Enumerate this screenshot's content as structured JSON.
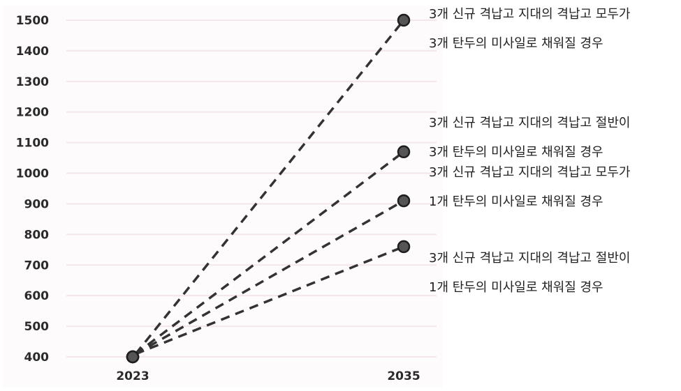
{
  "chart_data": {
    "type": "line",
    "title": "",
    "xlabel": "",
    "ylabel": "",
    "categories": [
      "2023",
      "2035"
    ],
    "ylim": [
      400,
      1500
    ],
    "yticks": [
      400,
      500,
      600,
      700,
      800,
      900,
      1000,
      1100,
      1200,
      1300,
      1400,
      1500
    ],
    "grid": true,
    "line_style": "dashed",
    "series": [
      {
        "name_lines": [
          "3개 신규 격납고 지대의 격납고 모두가",
          "3개 탄두의 미사일로 채워질 경우"
        ],
        "values": [
          400,
          1500
        ]
      },
      {
        "name_lines": [
          "3개 신규 격납고 지대의 격납고 절반이",
          "3개 탄두의 미사일로 채워질 경우"
        ],
        "values": [
          400,
          1070
        ]
      },
      {
        "name_lines": [
          "3개 신규 격납고 지대의 격납고 모두가",
          "1개 탄두의 미사일로 채워질 경우"
        ],
        "values": [
          400,
          910
        ]
      },
      {
        "name_lines": [
          "3개 신규 격납고 지대의 격납고 절반이",
          "1개 탄두의 미사일로 채워질 경우"
        ],
        "values": [
          400,
          760
        ]
      }
    ],
    "colors": {
      "line": "#333333",
      "marker": "#555555",
      "grid": "#f3e6ec"
    }
  }
}
